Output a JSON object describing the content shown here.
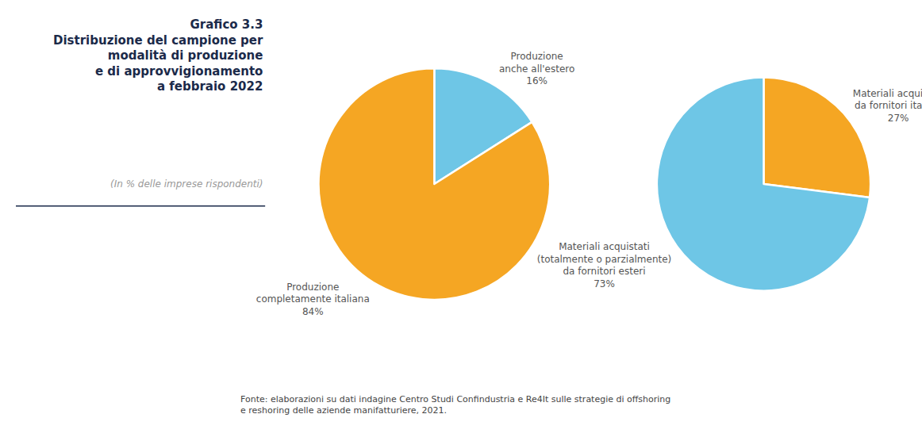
{
  "chart_data": [
    {
      "type": "pie",
      "title": "Grafico 3.3\nDistribuzione del campione per\nmodalità di produzione\ne di approvvigionamento\na febbraio 2022",
      "subtitle": "(In % delle imprese rispondenti)",
      "categories": [
        "Produzione\nanche all'estero",
        "Produzione\ncompletamente italiana"
      ],
      "values": [
        16,
        84
      ],
      "value_labels": [
        "16%",
        "84%"
      ],
      "colors": [
        "#6EC6E6",
        "#F5A623"
      ],
      "data_labels": true,
      "annotations": [
        "Fonte: elaborazioni su dati indagine Centro Studi Confindustria e Re4It sulle strategie di offshoring\ne reshoring delle aziende manifatturiere, 2021."
      ]
    },
    {
      "type": "pie",
      "categories": [
        "Materiali acquistati\nda fornitori italiani",
        "Materiali acquistati\n(totalmente o parzialmente)\nda fornitori esteri"
      ],
      "values": [
        27,
        73
      ],
      "value_labels": [
        "27%",
        "73%"
      ],
      "colors": [
        "#F5A623",
        "#6EC6E6"
      ],
      "data_labels": true
    }
  ]
}
